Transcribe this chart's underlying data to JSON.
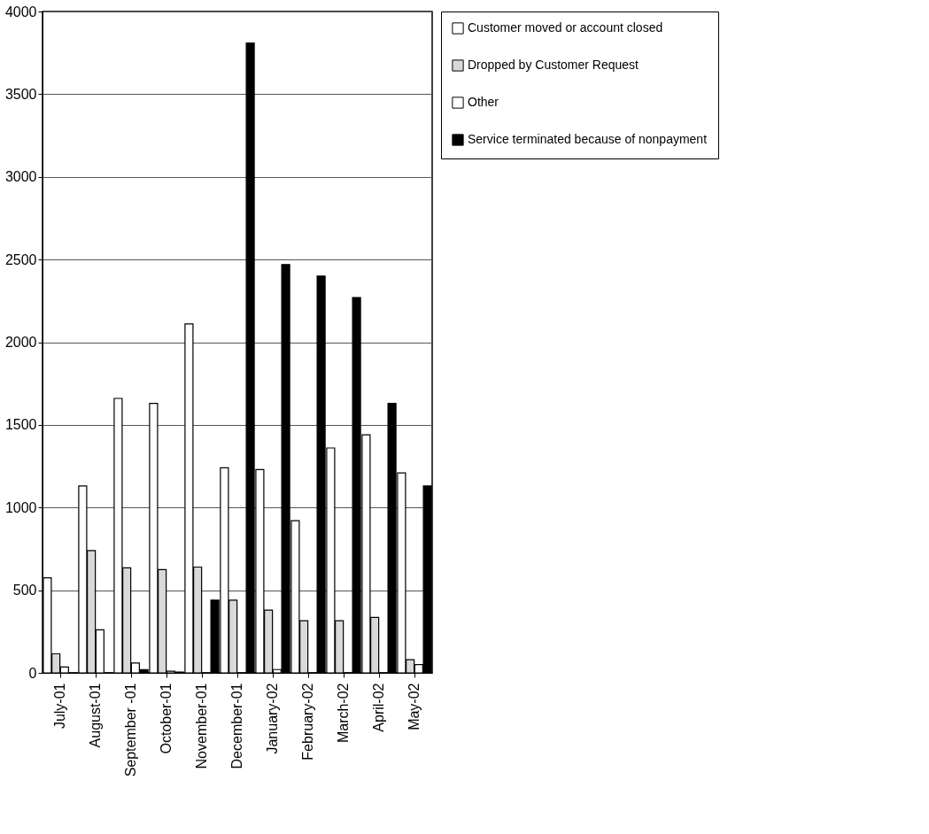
{
  "chart_data": {
    "type": "bar",
    "categories": [
      "July-01",
      "August-01",
      "September -01",
      "October-01",
      "November-01",
      "December-01",
      "January-02",
      "February-02",
      "March-02",
      "April-02",
      "May-02"
    ],
    "series": [
      {
        "name": "Customer moved or account closed",
        "color": "#ffffff",
        "values": [
          575,
          1130,
          1660,
          1630,
          2110,
          1240,
          1230,
          920,
          1360,
          1440,
          1210
        ]
      },
      {
        "name": "Dropped by Customer Request",
        "color": "#d9d9d9",
        "values": [
          115,
          740,
          635,
          625,
          640,
          440,
          380,
          315,
          315,
          335,
          80
        ]
      },
      {
        "name": "Other",
        "color": "#ffffff",
        "values": [
          35,
          260,
          60,
          10,
          0,
          0,
          20,
          0,
          0,
          0,
          50
        ]
      },
      {
        "name": "Service terminated because of nonpayment",
        "color": "#000000",
        "values": [
          0,
          0,
          20,
          5,
          440,
          3810,
          2470,
          2400,
          2270,
          1630,
          1130
        ]
      }
    ],
    "ylim": [
      0,
      4000
    ],
    "yticks": [
      0,
      500,
      1000,
      1500,
      2000,
      2500,
      3000,
      3500,
      4000
    ],
    "grid": "y",
    "legend": "right"
  }
}
